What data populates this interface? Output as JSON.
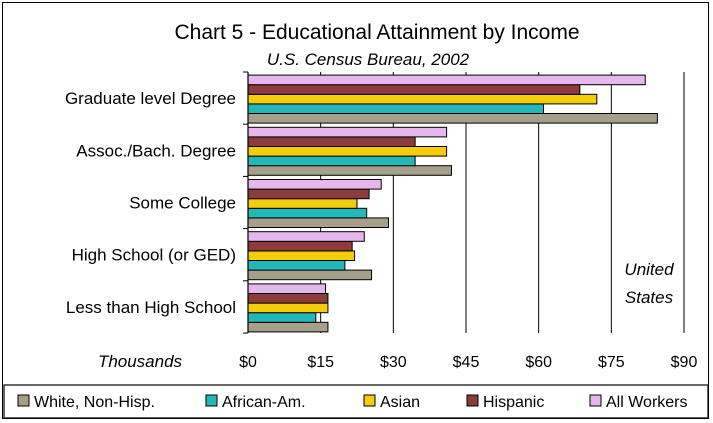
{
  "chart_data": {
    "type": "bar",
    "orientation": "horizontal",
    "title": "Chart 5 - Educational Attainment by Income",
    "subtitle": "U.S. Census Bureau, 2002",
    "xlabel": "Thousands",
    "annotation": [
      "United",
      "States"
    ],
    "xlim": [
      0,
      90
    ],
    "x_ticks": [
      0,
      15,
      30,
      45,
      60,
      75,
      90
    ],
    "x_tick_labels": [
      "$0",
      "$15",
      "$30",
      "$45",
      "$60",
      "$75",
      "$90"
    ],
    "grid": true,
    "legend_position": "bottom",
    "categories": [
      "Graduate level Degree",
      "Assoc./Bach. Degree",
      "Some College",
      "High School (or GED)",
      "Less than High School"
    ],
    "series": [
      {
        "name": "White, Non-Hisp.",
        "color": "#a6a08a",
        "values": [
          84.5,
          42.0,
          29.0,
          25.5,
          16.5
        ]
      },
      {
        "name": "African-Am.",
        "color": "#22b8b8",
        "values": [
          61.0,
          34.5,
          24.5,
          20.0,
          14.0
        ]
      },
      {
        "name": "Asian",
        "color": "#f5cc0a",
        "values": [
          72.0,
          41.0,
          22.5,
          22.0,
          16.5
        ]
      },
      {
        "name": "Hispanic",
        "color": "#8c3c3c",
        "values": [
          68.5,
          34.5,
          25.0,
          21.5,
          16.5
        ]
      },
      {
        "name": "All Workers",
        "color": "#e6b6ef",
        "values": [
          82.0,
          41.0,
          27.5,
          24.0,
          16.0
        ]
      }
    ]
  }
}
